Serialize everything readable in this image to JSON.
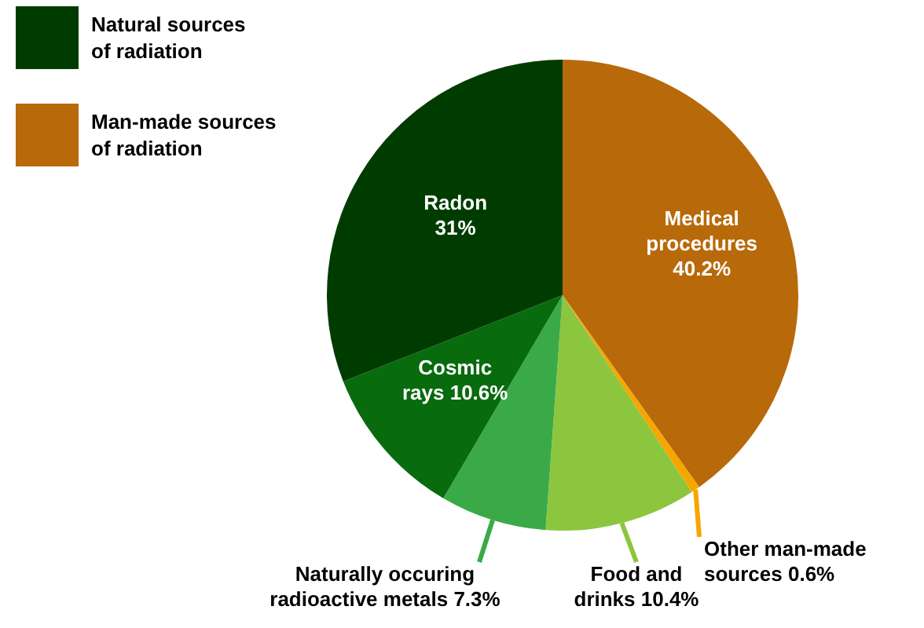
{
  "chart_data": {
    "type": "pie",
    "categories": [
      "Medical procedures",
      "Other man-made sources",
      "Food and drinks",
      "Naturally occuring radioactive metals",
      "Cosmic rays",
      "Radon"
    ],
    "values": [
      40.2,
      0.6,
      10.4,
      7.3,
      10.6,
      31
    ],
    "value_labels": [
      "40.2%",
      "0.6%",
      "10.4%",
      "7.3%",
      "10.6%",
      "31%"
    ],
    "colors": [
      "#b8690a",
      "#f7a600",
      "#8cc63e",
      "#3aaa48",
      "#086b0e",
      "#003c00"
    ],
    "annotations": [
      "Natural sources of radiation",
      "Man-made sources of radiation"
    ]
  }
}
